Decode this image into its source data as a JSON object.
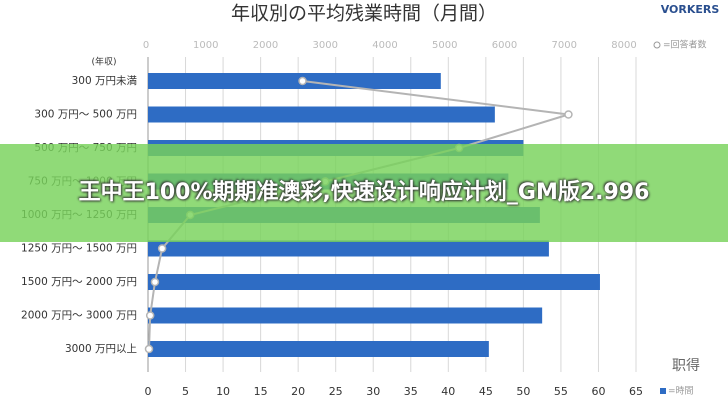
{
  "chart_data": {
    "type": "bar",
    "orientation": "horizontal",
    "title": "年収別の平均残業時間（月間）",
    "y_axis_label": "(年収)",
    "categories": [
      "300 万円未満",
      "300 万円～ 500 万円",
      "500 万円～ 750 万円",
      "750 万円～ 1000 万円",
      "1000 万円～ 1250 万円",
      "1250 万円～ 1500 万円",
      "1500 万円～ 2000 万円",
      "2000 万円～ 3000 万円",
      "3000 万円以上"
    ],
    "series": [
      {
        "name": "=時間",
        "type": "bar",
        "color": "#2e6cc4",
        "values": [
          39.0,
          46.2,
          50.0,
          48.0,
          52.2,
          53.4,
          60.2,
          52.5,
          45.4
        ]
      },
      {
        "name": "=回答者数",
        "type": "line",
        "axis": "x2",
        "color": "#b4b4b4",
        "values": [
          2620,
          7070,
          5240,
          3000,
          740,
          270,
          150,
          70,
          50
        ]
      }
    ],
    "xlim": [
      0,
      65
    ],
    "xticks": [
      0,
      5,
      10,
      15,
      20,
      25,
      30,
      35,
      40,
      45,
      50,
      55,
      60,
      65
    ],
    "x2lim": [
      0,
      8000
    ],
    "x2ticks": [
      0,
      1000,
      2000,
      3000,
      4000,
      5000,
      6000,
      7000,
      8000
    ],
    "grid": true
  },
  "logo": "VORKERS",
  "watermark": "职得",
  "banner": "王中王100%期期准澳彩,快速设计响应计划_GM版2.996"
}
